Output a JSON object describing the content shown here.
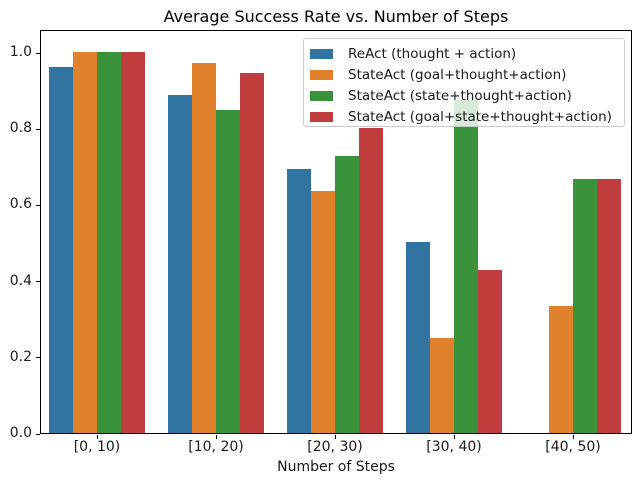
{
  "chart_data": {
    "type": "bar",
    "title": "Average Success Rate vs. Number of Steps",
    "xlabel": "Number of Steps",
    "ylabel": "",
    "categories": [
      "[0, 10)",
      "[10, 20)",
      "[20, 30)",
      "[30, 40)",
      "[40, 50)"
    ],
    "series": [
      {
        "name": "ReAct (thought + action)",
        "color": "#3274a1",
        "values": [
          0.96,
          0.886,
          0.692,
          0.5,
          0
        ]
      },
      {
        "name": "StateAct (goal+thought+action)",
        "color": "#e1812c",
        "values": [
          1.0,
          0.97,
          0.636,
          0.25,
          0.333
        ]
      },
      {
        "name": "StateAct (state+thought+action)",
        "color": "#3a923a",
        "values": [
          1.0,
          0.848,
          0.727,
          0.875,
          0.667
        ]
      },
      {
        "name": "StateAct (goal+state+thought+action)",
        "color": "#c03d3e",
        "values": [
          1.0,
          0.945,
          0.8,
          0.429,
          0.667
        ]
      }
    ],
    "yticks": [
      "0.0",
      "0.2",
      "0.4",
      "0.6",
      "0.8",
      "1.0"
    ],
    "ylim": [
      0,
      1.058
    ],
    "grid": false,
    "legend_position": "upper right"
  }
}
